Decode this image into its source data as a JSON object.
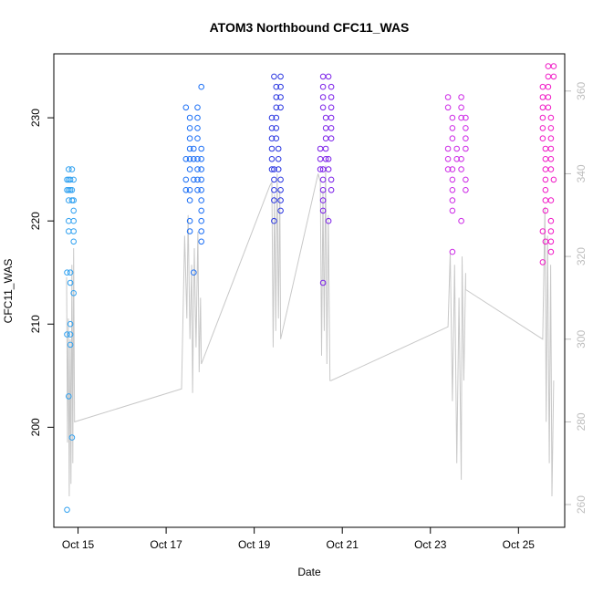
{
  "chart_data": {
    "type": "scatter",
    "title": "ATOM3 Northbound CFC11_WAS",
    "xlabel": "Date",
    "ylabel": "CFC11_WAS",
    "xlim": [
      14.45,
      26.05
    ],
    "ylim": [
      190.3,
      236.2
    ],
    "y2lim": [
      254.5,
      369.0
    ],
    "x_ticks": [
      {
        "value": 15,
        "label": "Oct 15"
      },
      {
        "value": 17,
        "label": "Oct 17"
      },
      {
        "value": 19,
        "label": "Oct 19"
      },
      {
        "value": 21,
        "label": "Oct 21"
      },
      {
        "value": 23,
        "label": "Oct 23"
      },
      {
        "value": 25,
        "label": "Oct 25"
      }
    ],
    "y_ticks": [
      200,
      210,
      220,
      230
    ],
    "y2_ticks": [
      260,
      280,
      300,
      320,
      340,
      360
    ],
    "flights": [
      {
        "x_start": 14.75,
        "x_end": 14.9,
        "color": "#2ea0f0",
        "values": [
          192,
          199,
          203,
          208,
          209,
          209,
          210,
          213,
          214,
          215,
          215,
          218,
          219,
          219,
          220,
          220,
          221,
          222,
          222,
          222,
          223,
          223,
          223,
          223,
          224,
          224,
          224,
          224,
          225,
          225
        ]
      },
      {
        "x_start": 17.45,
        "x_end": 17.8,
        "color": "#1a6ef5",
        "values": [
          215,
          218,
          219,
          219,
          220,
          220,
          221,
          222,
          222,
          223,
          223,
          223,
          223,
          224,
          224,
          224,
          224,
          225,
          225,
          225,
          226,
          226,
          226,
          226,
          226,
          227,
          227,
          227,
          228,
          228,
          229,
          229,
          230,
          230,
          231,
          231,
          233
        ]
      },
      {
        "x_start": 19.4,
        "x_end": 19.6,
        "color": "#2a36e0",
        "values": [
          220,
          221,
          222,
          222,
          223,
          223,
          224,
          224,
          225,
          225,
          225,
          226,
          226,
          227,
          227,
          228,
          228,
          229,
          229,
          230,
          230,
          231,
          231,
          232,
          232,
          233,
          233,
          234,
          234
        ]
      },
      {
        "x_start": 20.5,
        "x_end": 20.75,
        "color": "#7a1ee8",
        "values": [
          214,
          220,
          221,
          222,
          223,
          223,
          224,
          224,
          225,
          225,
          225,
          226,
          226,
          226,
          227,
          227,
          228,
          228,
          229,
          229,
          230,
          230,
          231,
          231,
          232,
          232,
          233,
          233,
          234,
          234
        ]
      },
      {
        "x_start": 23.4,
        "x_end": 23.8,
        "color": "#cc28e6",
        "values": [
          217,
          220,
          221,
          222,
          223,
          223,
          224,
          224,
          225,
          225,
          225,
          226,
          226,
          226,
          227,
          227,
          227,
          228,
          228,
          229,
          229,
          230,
          230,
          230,
          231,
          231,
          232,
          232
        ]
      },
      {
        "x_start": 25.55,
        "x_end": 25.8,
        "color": "#f018c6",
        "values": [
          216,
          217,
          218,
          218,
          219,
          219,
          220,
          221,
          222,
          222,
          223,
          224,
          224,
          225,
          225,
          226,
          226,
          227,
          227,
          228,
          228,
          229,
          229,
          230,
          230,
          231,
          231,
          232,
          232,
          233,
          233,
          234,
          234,
          235,
          235
        ]
      }
    ],
    "secondary_line": {
      "color": "#c8c8c8",
      "points": [
        [
          14.74,
          315
        ],
        [
          14.76,
          275
        ],
        [
          14.78,
          305
        ],
        [
          14.8,
          262
        ],
        [
          14.82,
          300
        ],
        [
          14.84,
          265
        ],
        [
          14.86,
          318
        ],
        [
          14.88,
          270
        ],
        [
          14.9,
          322
        ],
        [
          14.92,
          280
        ],
        [
          17.35,
          288
        ],
        [
          17.42,
          325
        ],
        [
          17.47,
          305
        ],
        [
          17.5,
          330
        ],
        [
          17.54,
          300
        ],
        [
          17.58,
          318
        ],
        [
          17.6,
          287
        ],
        [
          17.64,
          322
        ],
        [
          17.68,
          298
        ],
        [
          17.72,
          326
        ],
        [
          17.75,
          292
        ],
        [
          17.78,
          310
        ],
        [
          17.8,
          294
        ],
        [
          19.35,
          337
        ],
        [
          19.4,
          338
        ],
        [
          19.43,
          298
        ],
        [
          19.46,
          335
        ],
        [
          19.49,
          302
        ],
        [
          19.52,
          340
        ],
        [
          19.55,
          305
        ],
        [
          19.58,
          336
        ],
        [
          19.6,
          300
        ],
        [
          20.45,
          340
        ],
        [
          20.5,
          338
        ],
        [
          20.53,
          296
        ],
        [
          20.56,
          336
        ],
        [
          20.59,
          302
        ],
        [
          20.62,
          342
        ],
        [
          20.65,
          294
        ],
        [
          20.68,
          330
        ],
        [
          20.72,
          290
        ],
        [
          20.75,
          290
        ],
        [
          23.4,
          303
        ],
        [
          23.45,
          321
        ],
        [
          23.5,
          285
        ],
        [
          23.55,
          318
        ],
        [
          23.6,
          270
        ],
        [
          23.65,
          310
        ],
        [
          23.7,
          266
        ],
        [
          23.72,
          320
        ],
        [
          23.76,
          290
        ],
        [
          23.8,
          316
        ],
        [
          23.8,
          312
        ],
        [
          25.55,
          300
        ],
        [
          25.6,
          332
        ],
        [
          25.63,
          280
        ],
        [
          25.66,
          325
        ],
        [
          25.7,
          270
        ],
        [
          25.73,
          318
        ],
        [
          25.76,
          262
        ],
        [
          25.8,
          290
        ]
      ]
    }
  }
}
